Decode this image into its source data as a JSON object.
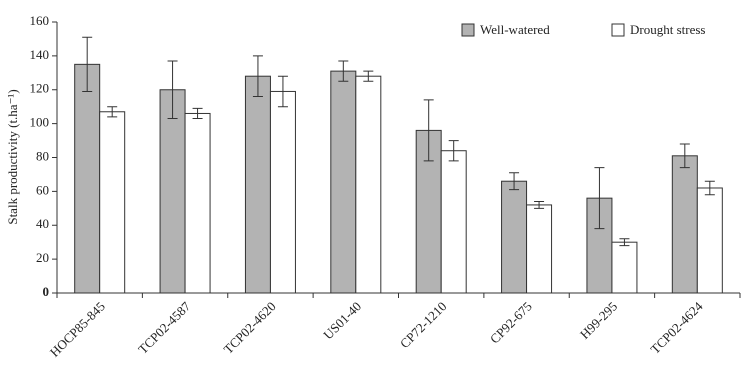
{
  "chart_data": {
    "type": "bar",
    "y_label": "Stalk productivity (t.ha⁻¹)",
    "categories": [
      "HOCP85-845",
      "TCP02-4587",
      "TCP02-4620",
      "US01-40",
      "CP72-1210",
      "CP92-675",
      "H99-295",
      "TCP02-4624"
    ],
    "series": [
      {
        "name": "Well-watered",
        "color": "#b3b3b3",
        "values": [
          135,
          120,
          128,
          131,
          96,
          66,
          56,
          81
        ],
        "errors": [
          16,
          17,
          12,
          6,
          18,
          5,
          18,
          7
        ]
      },
      {
        "name": "Drought stress",
        "color": "#ffffff",
        "values": [
          107,
          106,
          119,
          128,
          84,
          52,
          30,
          62
        ],
        "errors": [
          3,
          3,
          9,
          3,
          6,
          2,
          2,
          4
        ]
      }
    ],
    "ylim": [
      0,
      160
    ],
    "yticks": [
      0,
      20,
      40,
      60,
      80,
      100,
      120,
      140,
      160
    ],
    "legend": "upper right",
    "grid": false
  }
}
